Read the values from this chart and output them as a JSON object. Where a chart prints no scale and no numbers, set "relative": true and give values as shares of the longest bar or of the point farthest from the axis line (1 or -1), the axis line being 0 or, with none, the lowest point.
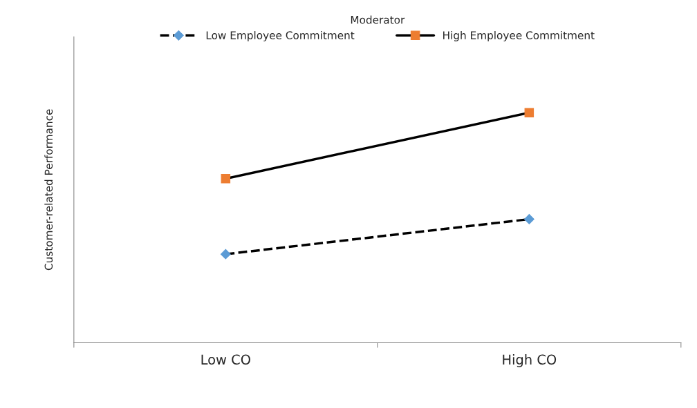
{
  "chart_data": {
    "type": "line",
    "relative": true,
    "ylabel": "Customer-related Performance",
    "legend_title": "Moderator",
    "legend": "top",
    "categories": [
      "Low CO",
      "High CO"
    ],
    "series": [
      {
        "name": "Low Employee Commitment",
        "color": "#5b9bd5",
        "values": [
          0.385,
          0.537
        ],
        "marker": "diamond",
        "line_style": "dashed"
      },
      {
        "name": "High Employee Commitment",
        "color": "#ed7d31",
        "values": [
          0.713,
          1
        ],
        "marker": "square",
        "line_style": "solid"
      }
    ]
  }
}
